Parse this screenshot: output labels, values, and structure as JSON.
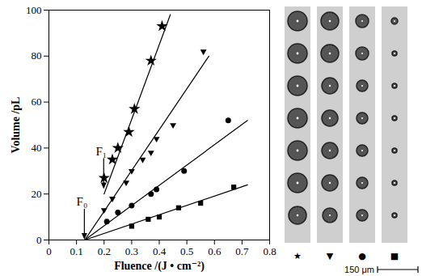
{
  "chart_data": {
    "type": "scatter",
    "x_label": "Fluence /(J • cm⁻²)",
    "y_label": "Volume /pL",
    "xlim": [
      0,
      0.8
    ],
    "xticks": [
      0,
      0.1,
      0.2,
      0.3,
      0.4,
      0.5,
      0.6,
      0.7,
      0.8
    ],
    "ylim": [
      0,
      100
    ],
    "yticks": [
      0,
      20,
      40,
      60,
      80,
      100
    ],
    "series": [
      {
        "marker": "star",
        "color": "#000000",
        "x": [
          0.2,
          0.23,
          0.25,
          0.29,
          0.31,
          0.37,
          0.41
        ],
        "values": [
          27,
          35,
          40,
          47,
          57,
          78,
          93
        ]
      },
      {
        "marker": "triangle-down",
        "color": "#000000",
        "x": [
          0.2,
          0.23,
          0.28,
          0.3,
          0.34,
          0.37,
          0.39,
          0.45,
          0.56
        ],
        "values": [
          13,
          18,
          25,
          30,
          35,
          38,
          44,
          50,
          82
        ]
      },
      {
        "marker": "circle",
        "color": "#000000",
        "x": [
          0.21,
          0.25,
          0.3,
          0.37,
          0.39,
          0.49,
          0.65
        ],
        "values": [
          8,
          12,
          15,
          20,
          22,
          30,
          52
        ]
      },
      {
        "marker": "square",
        "color": "#000000",
        "x": [
          0.3,
          0.36,
          0.4,
          0.47,
          0.55,
          0.67
        ],
        "values": [
          6,
          9,
          10,
          14,
          16,
          23
        ]
      },
      {
        "type": "line",
        "color": "#000000",
        "x": [
          0.2,
          0.44
        ],
        "values": [
          20,
          98
        ]
      },
      {
        "type": "line",
        "color": "#000000",
        "x": [
          0.13,
          0.58
        ],
        "values": [
          0,
          80
        ]
      },
      {
        "type": "line",
        "color": "#000000",
        "x": [
          0.13,
          0.72
        ],
        "values": [
          0,
          52
        ]
      },
      {
        "type": "line",
        "color": "#000000",
        "x": [
          0.13,
          0.72
        ],
        "values": [
          0,
          24
        ]
      }
    ],
    "annotations": [
      {
        "text": "F₁",
        "x": 0.2,
        "y": 22
      },
      {
        "text": "F₀",
        "x": 0.13,
        "y": 0
      }
    ],
    "image_labels": [
      "★",
      "▼",
      "●",
      "■"
    ],
    "scale_bar_label": "150 μm"
  }
}
